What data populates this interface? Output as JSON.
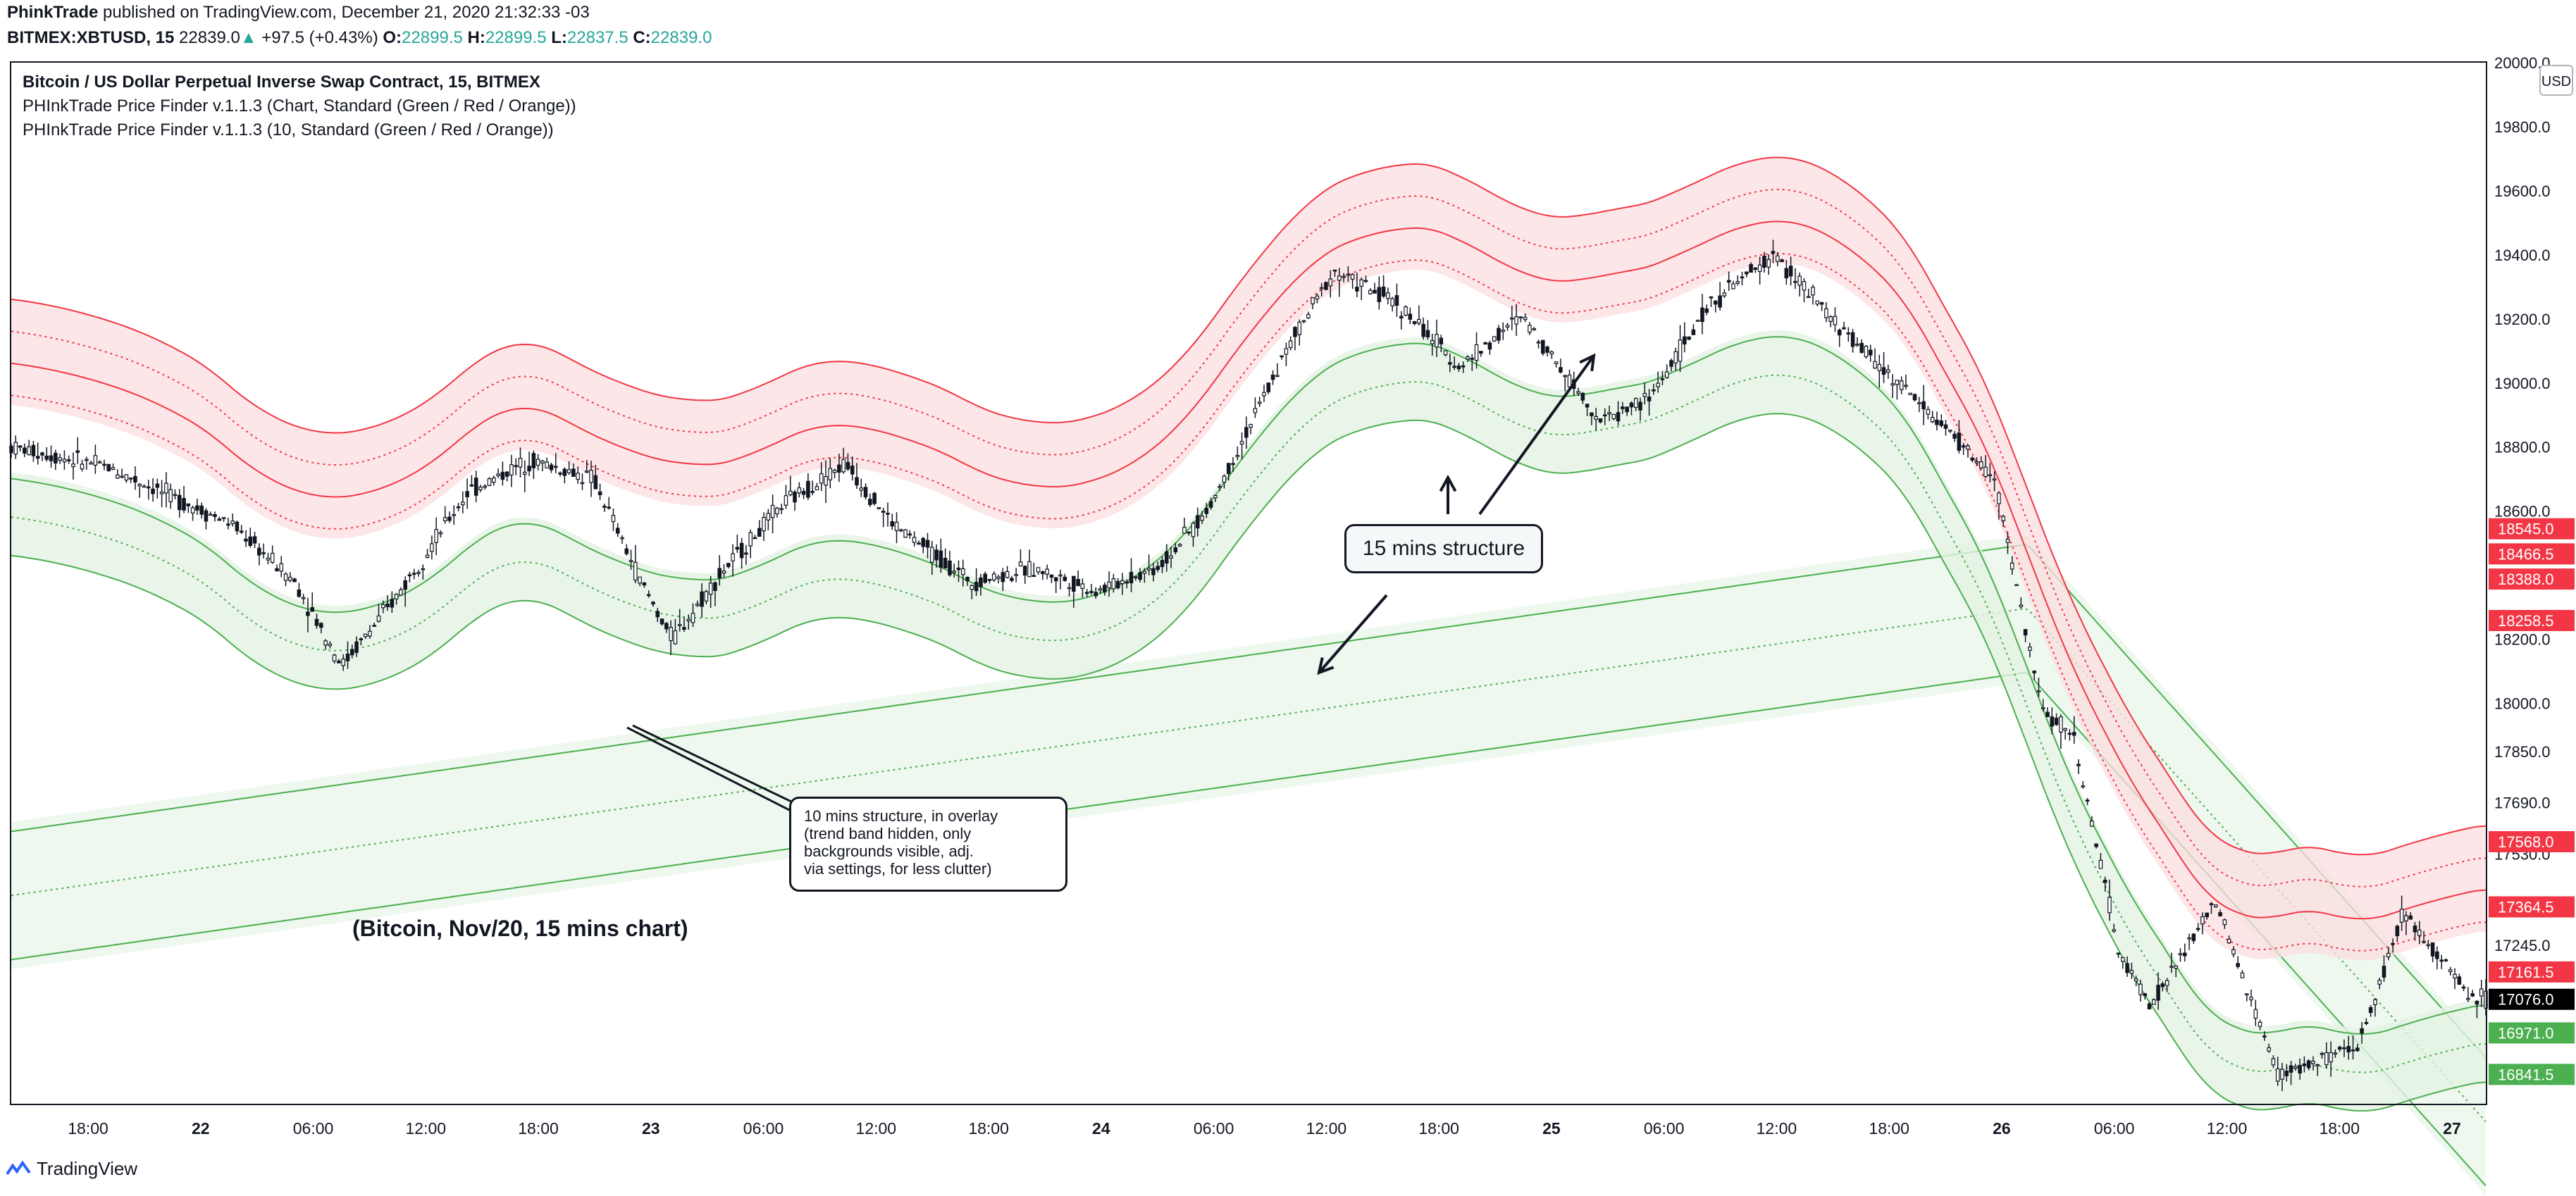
{
  "header": {
    "author": "PhinkTrade",
    "published": "published on TradingView.com, December 21, 2020 21:32:33 -03",
    "symbol": "BITMEX:XBTUSD, 15",
    "last": "22839.0",
    "change_arrow": "▲",
    "change": "+97.5 (+0.43%)",
    "o_label": "O:",
    "o": "22899.5",
    "h_label": "H:",
    "h": "22899.5",
    "l_label": "L:",
    "l": "22837.5",
    "c_label": "C:",
    "c": "22839.0"
  },
  "legend": [
    "Bitcoin / US Dollar Perpetual Inverse Swap Contract, 15, BITMEX",
    "PHInkTrade Price Finder v.1.1.3 (Chart, Standard (Green / Red / Orange))",
    "PHInkTrade Price Finder v.1.1.3 (10, Standard (Green / Red / Orange))"
  ],
  "annotations": {
    "callout_15": "15 mins structure",
    "callout_10": [
      "10 mins structure, in overlay",
      "(trend band hidden, only",
      "backgrounds visible, adj.",
      "via settings, for less clutter)"
    ],
    "caption": "(Bitcoin, Nov/20, 15 mins chart)"
  },
  "currency_button": "USD",
  "footer": {
    "brand": "TradingView",
    "logo_icon": "tradingview-logo-icon"
  },
  "colors": {
    "green": "#4caf50",
    "red": "#f23645",
    "up": "#26a69a",
    "candle": "#131722",
    "green_fill": "#e3f3e4",
    "red_fill": "#fcdde0"
  },
  "chart_data": {
    "type": "candlestick",
    "x_ticks": [
      "18:00",
      "22",
      "06:00",
      "12:00",
      "18:00",
      "23",
      "06:00",
      "12:00",
      "18:00",
      "24",
      "06:00",
      "12:00",
      "18:00",
      "25",
      "06:00",
      "12:00",
      "18:00",
      "26",
      "06:00",
      "12:00",
      "18:00",
      "27"
    ],
    "y_ticks": [
      "20000.0",
      "19800.0",
      "19600.0",
      "19400.0",
      "19200.0",
      "19000.0",
      "18800.0",
      "18600.0",
      "18400.0",
      "18200.0",
      "18000.0",
      "17850.0",
      "17690.0",
      "17530.0",
      "17245.0"
    ],
    "price_labels": [
      {
        "text": "18545.0",
        "kind": "red"
      },
      {
        "text": "18466.5",
        "kind": "red"
      },
      {
        "text": "18388.0",
        "kind": "red"
      },
      {
        "text": "18258.5",
        "kind": "red"
      },
      {
        "text": "17568.0",
        "kind": "red"
      },
      {
        "text": "17364.5",
        "kind": "red"
      },
      {
        "text": "17161.5",
        "kind": "red"
      },
      {
        "text": "17076.0",
        "kind": "last"
      },
      {
        "text": "16971.0",
        "kind": "green"
      },
      {
        "text": "16841.5",
        "kind": "green"
      }
    ],
    "price_path": [
      [
        0,
        18800
      ],
      [
        3,
        18740
      ],
      [
        7,
        18560
      ],
      [
        9,
        18380
      ],
      [
        10.5,
        18120
      ],
      [
        12,
        18300
      ],
      [
        14.5,
        18660
      ],
      [
        16.5,
        18760
      ],
      [
        18.5,
        18700
      ],
      [
        20,
        18380
      ],
      [
        21,
        18200
      ],
      [
        22.5,
        18400
      ],
      [
        24.5,
        18620
      ],
      [
        26.5,
        18750
      ],
      [
        28,
        18560
      ],
      [
        30.5,
        18380
      ],
      [
        32.5,
        18420
      ],
      [
        34.5,
        18350
      ],
      [
        36.5,
        18430
      ],
      [
        38,
        18600
      ],
      [
        40.5,
        19100
      ],
      [
        42,
        19350
      ],
      [
        44,
        19250
      ],
      [
        46,
        19050
      ],
      [
        48,
        19210
      ],
      [
        50.5,
        18880
      ],
      [
        52,
        18950
      ],
      [
        54,
        19250
      ],
      [
        56,
        19400
      ],
      [
        58,
        19180
      ],
      [
        60.5,
        18950
      ],
      [
        63,
        18700
      ],
      [
        64.5,
        17980
      ],
      [
        65.5,
        17900
      ],
      [
        67,
        17200
      ],
      [
        68,
        17060
      ],
      [
        70,
        17380
      ],
      [
        72,
        16840
      ],
      [
        74.5,
        16920
      ],
      [
        76,
        17350
      ],
      [
        78,
        17100
      ],
      [
        78.6,
        17076
      ]
    ],
    "ylim": [
      16750,
      20000
    ],
    "x_span": [
      0,
      78.6
    ]
  }
}
